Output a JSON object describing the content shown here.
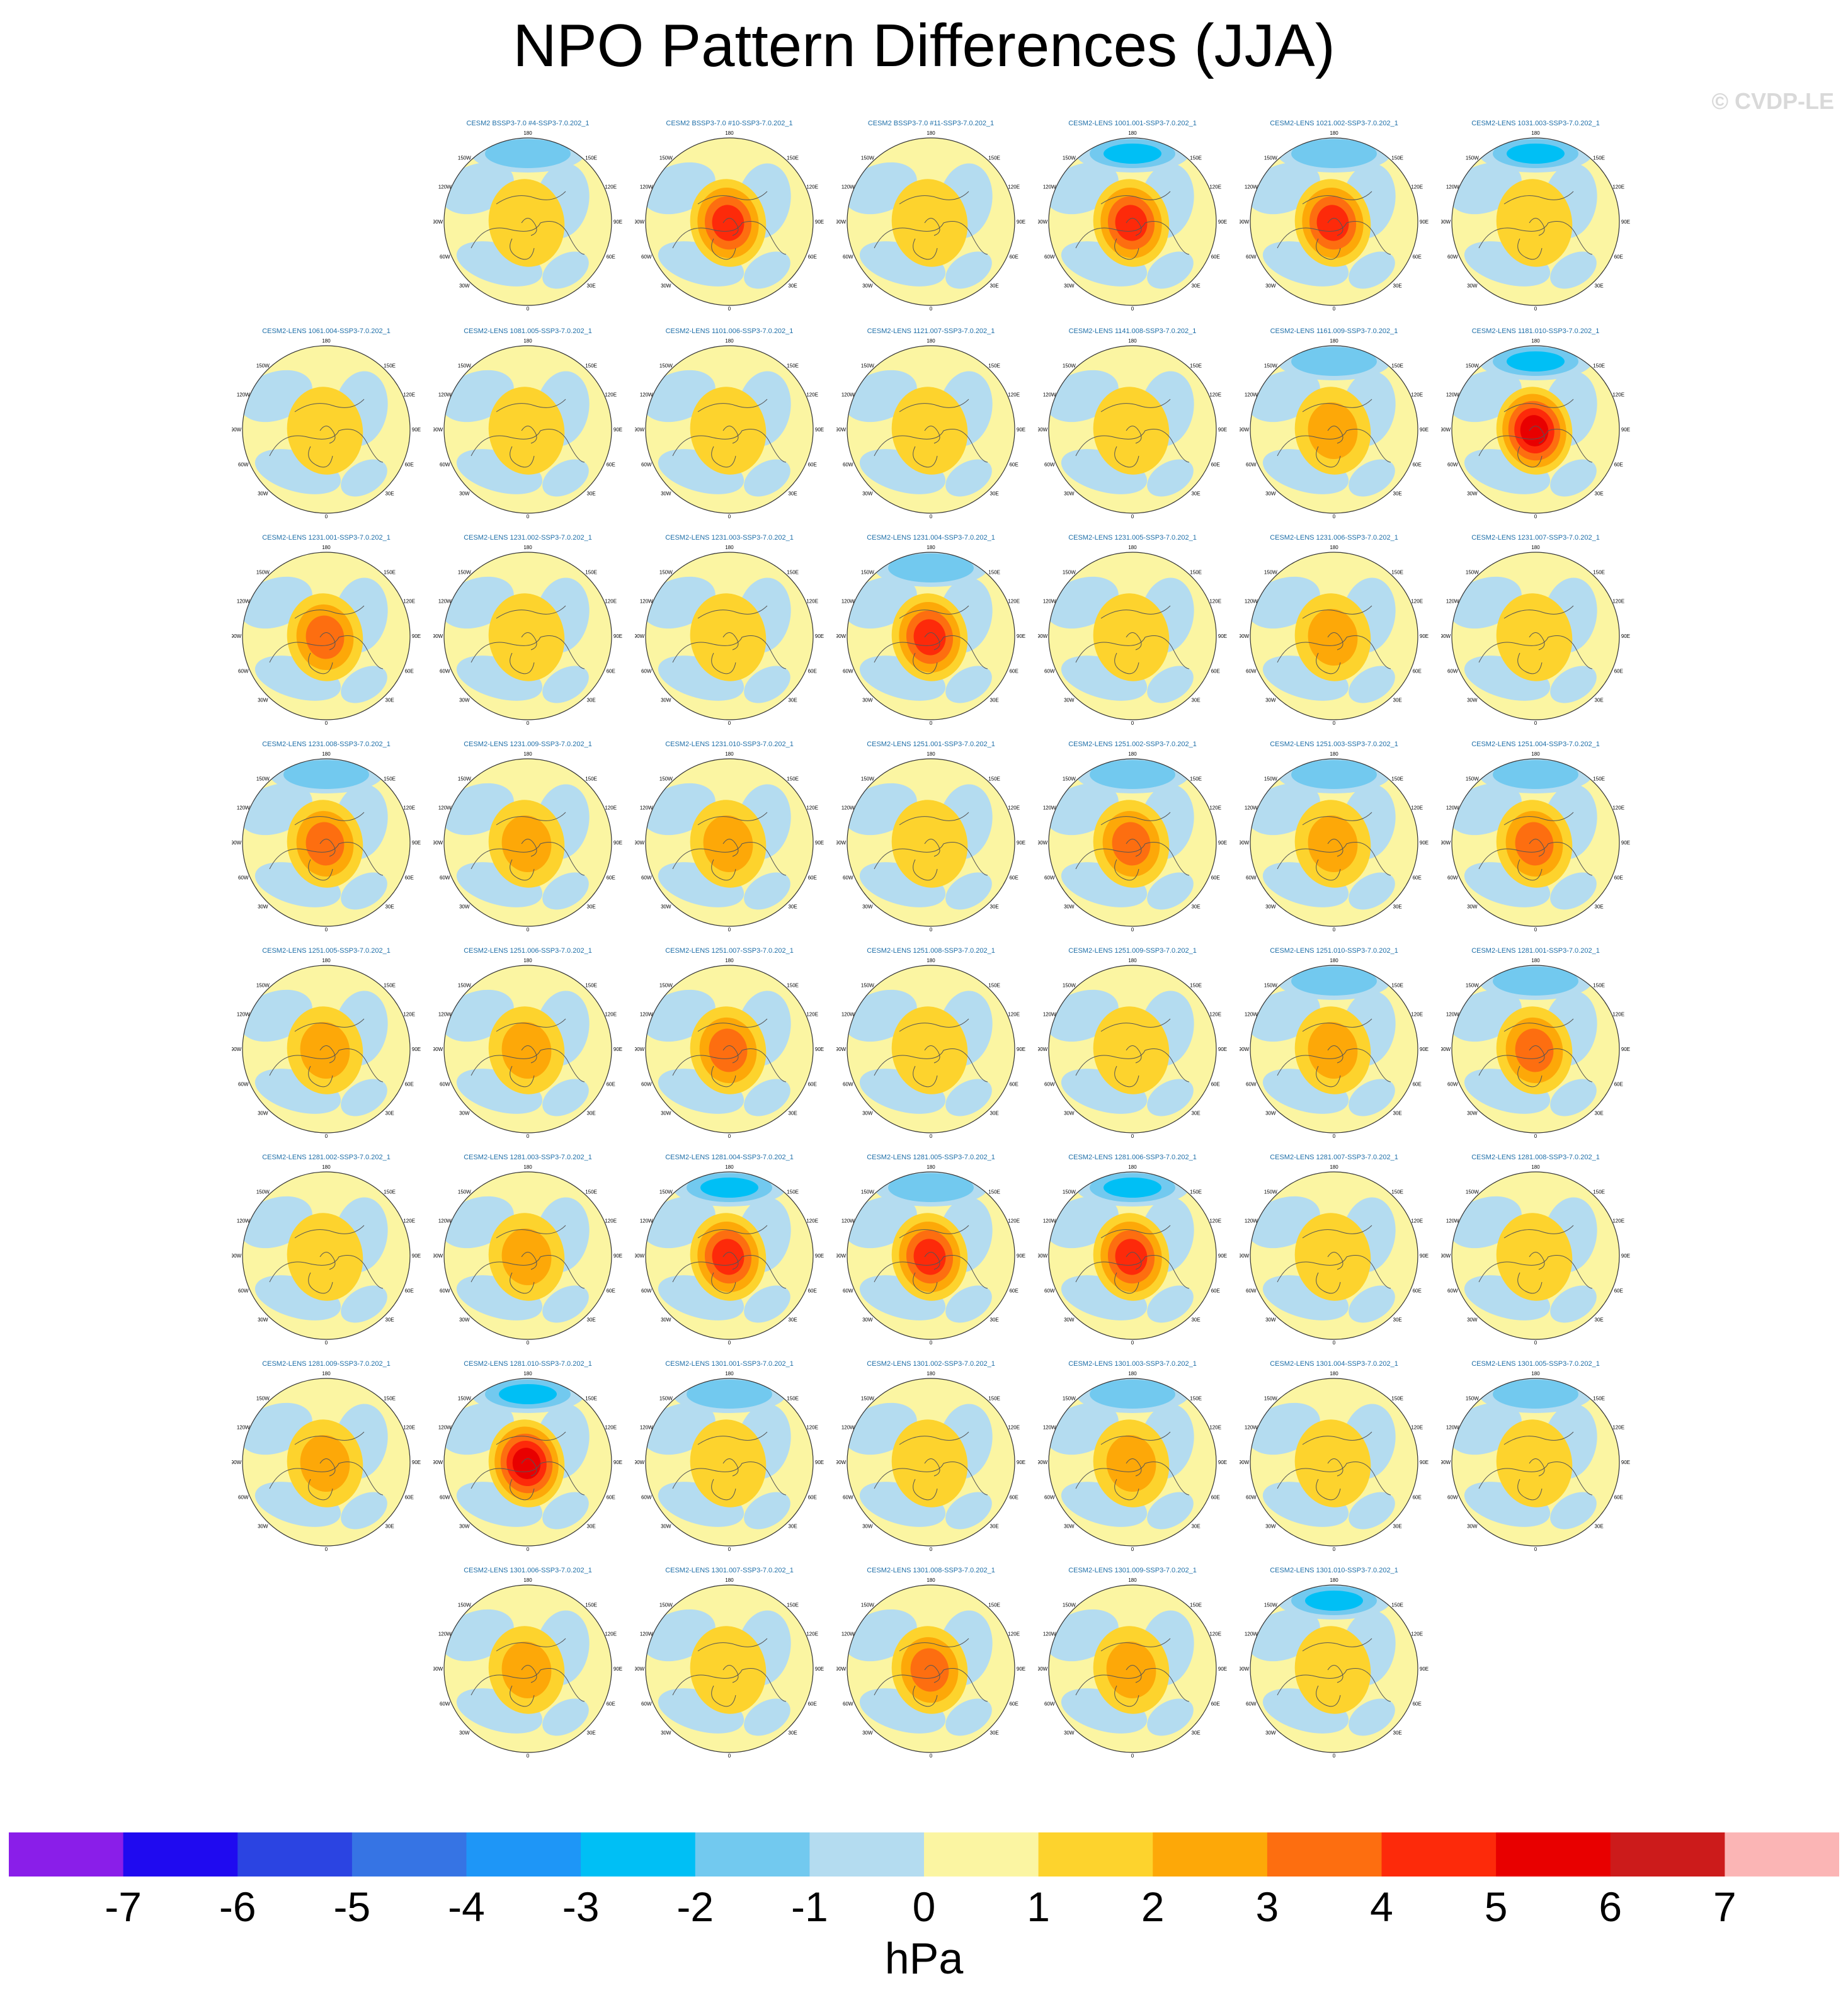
{
  "title": "NPO Pattern Differences (JJA)",
  "watermark": "© CVDP-LE",
  "colorbar": {
    "units": "hPa",
    "ticks": [
      "-7",
      "-6",
      "-5",
      "-4",
      "-3",
      "-2",
      "-1",
      "0",
      "1",
      "2",
      "3",
      "4",
      "5",
      "6",
      "7"
    ],
    "colors": [
      "#8a1ee9",
      "#1f0af0",
      "#2b44e2",
      "#3674e4",
      "#1e96f7",
      "#00bff5",
      "#72c9ef",
      "#b4dcf0",
      "#fbf5a2",
      "#fdd32d",
      "#fda808",
      "#fd6e10",
      "#fd2a0a",
      "#e80000",
      "#cc1b1b",
      "#fbb5b5"
    ]
  },
  "map_labels": {
    "top": "180",
    "bottom": "0",
    "left": [
      "150W",
      "120W",
      "90W",
      "60W",
      "30W"
    ],
    "right": [
      "150E",
      "120E",
      "90E",
      "60E",
      "30E"
    ]
  },
  "panels": [
    {
      "title": "CESM2 BSSP3-7.0 #4-SSP3-7.0.202_1",
      "peak": 1,
      "pole": -1
    },
    {
      "title": "CESM2 BSSP3-7.0 #10-SSP3-7.0.202_1",
      "peak": 4,
      "pole": 0
    },
    {
      "title": "CESM2 BSSP3-7.0 #11-SSP3-7.0.202_1",
      "peak": 1,
      "pole": 0
    },
    {
      "title": "CESM2-LENS 1001.001-SSP3-7.0.202_1",
      "peak": 4,
      "pole": -2
    },
    {
      "title": "CESM2-LENS 1021.002-SSP3-7.0.202_1",
      "peak": 4,
      "pole": -1
    },
    {
      "title": "CESM2-LENS 1031.003-SSP3-7.0.202_1",
      "peak": 1,
      "pole": -2
    },
    {
      "title": "CESM2-LENS 1061.004-SSP3-7.0.202_1",
      "peak": 1,
      "pole": 0
    },
    {
      "title": "CESM2-LENS 1081.005-SSP3-7.0.202_1",
      "peak": 1,
      "pole": 0
    },
    {
      "title": "CESM2-LENS 1101.006-SSP3-7.0.202_1",
      "peak": 1,
      "pole": 0
    },
    {
      "title": "CESM2-LENS 1121.007-SSP3-7.0.202_1",
      "peak": 1,
      "pole": 0
    },
    {
      "title": "CESM2-LENS 1141.008-SSP3-7.0.202_1",
      "peak": 1,
      "pole": 0
    },
    {
      "title": "CESM2-LENS 1161.009-SSP3-7.0.202_1",
      "peak": 2,
      "pole": -1
    },
    {
      "title": "CESM2-LENS 1181.010-SSP3-7.0.202_1",
      "peak": 5,
      "pole": -2
    },
    {
      "title": "CESM2-LENS 1231.001-SSP3-7.0.202_1",
      "peak": 3,
      "pole": 0
    },
    {
      "title": "CESM2-LENS 1231.002-SSP3-7.0.202_1",
      "peak": 1,
      "pole": 0
    },
    {
      "title": "CESM2-LENS 1231.003-SSP3-7.0.202_1",
      "peak": 1,
      "pole": 0
    },
    {
      "title": "CESM2-LENS 1231.004-SSP3-7.0.202_1",
      "peak": 4,
      "pole": -1
    },
    {
      "title": "CESM2-LENS 1231.005-SSP3-7.0.202_1",
      "peak": 1,
      "pole": 0
    },
    {
      "title": "CESM2-LENS 1231.006-SSP3-7.0.202_1",
      "peak": 2,
      "pole": 0
    },
    {
      "title": "CESM2-LENS 1231.007-SSP3-7.0.202_1",
      "peak": 1,
      "pole": 0
    },
    {
      "title": "CESM2-LENS 1231.008-SSP3-7.0.202_1",
      "peak": 3,
      "pole": -1
    },
    {
      "title": "CESM2-LENS 1231.009-SSP3-7.0.202_1",
      "peak": 2,
      "pole": 0
    },
    {
      "title": "CESM2-LENS 1231.010-SSP3-7.0.202_1",
      "peak": 2,
      "pole": 0
    },
    {
      "title": "CESM2-LENS 1251.001-SSP3-7.0.202_1",
      "peak": 1,
      "pole": 0
    },
    {
      "title": "CESM2-LENS 1251.002-SSP3-7.0.202_1",
      "peak": 3,
      "pole": -1
    },
    {
      "title": "CESM2-LENS 1251.003-SSP3-7.0.202_1",
      "peak": 2,
      "pole": -1
    },
    {
      "title": "CESM2-LENS 1251.004-SSP3-7.0.202_1",
      "peak": 3,
      "pole": -1
    },
    {
      "title": "CESM2-LENS 1251.005-SSP3-7.0.202_1",
      "peak": 2,
      "pole": 0
    },
    {
      "title": "CESM2-LENS 1251.006-SSP3-7.0.202_1",
      "peak": 2,
      "pole": 0
    },
    {
      "title": "CESM2-LENS 1251.007-SSP3-7.0.202_1",
      "peak": 3,
      "pole": 0
    },
    {
      "title": "CESM2-LENS 1251.008-SSP3-7.0.202_1",
      "peak": 1,
      "pole": 0
    },
    {
      "title": "CESM2-LENS 1251.009-SSP3-7.0.202_1",
      "peak": 1,
      "pole": 0
    },
    {
      "title": "CESM2-LENS 1251.010-SSP3-7.0.202_1",
      "peak": 2,
      "pole": -1
    },
    {
      "title": "CESM2-LENS 1281.001-SSP3-7.0.202_1",
      "peak": 3,
      "pole": -1
    },
    {
      "title": "CESM2-LENS 1281.002-SSP3-7.0.202_1",
      "peak": 1,
      "pole": 0
    },
    {
      "title": "CESM2-LENS 1281.003-SSP3-7.0.202_1",
      "peak": 2,
      "pole": 0
    },
    {
      "title": "CESM2-LENS 1281.004-SSP3-7.0.202_1",
      "peak": 4,
      "pole": -2
    },
    {
      "title": "CESM2-LENS 1281.005-SSP3-7.0.202_1",
      "peak": 4,
      "pole": -1
    },
    {
      "title": "CESM2-LENS 1281.006-SSP3-7.0.202_1",
      "peak": 4,
      "pole": -2
    },
    {
      "title": "CESM2-LENS 1281.007-SSP3-7.0.202_1",
      "peak": 1,
      "pole": 0
    },
    {
      "title": "CESM2-LENS 1281.008-SSP3-7.0.202_1",
      "peak": 1,
      "pole": 0
    },
    {
      "title": "CESM2-LENS 1281.009-SSP3-7.0.202_1",
      "peak": 2,
      "pole": 0
    },
    {
      "title": "CESM2-LENS 1281.010-SSP3-7.0.202_1",
      "peak": 5,
      "pole": -2
    },
    {
      "title": "CESM2-LENS 1301.001-SSP3-7.0.202_1",
      "peak": 1,
      "pole": -1
    },
    {
      "title": "CESM2-LENS 1301.002-SSP3-7.0.202_1",
      "peak": 1,
      "pole": 0
    },
    {
      "title": "CESM2-LENS 1301.003-SSP3-7.0.202_1",
      "peak": 2,
      "pole": -1
    },
    {
      "title": "CESM2-LENS 1301.004-SSP3-7.0.202_1",
      "peak": 1,
      "pole": 0
    },
    {
      "title": "CESM2-LENS 1301.005-SSP3-7.0.202_1",
      "peak": 1,
      "pole": -1
    },
    {
      "title": "CESM2-LENS 1301.006-SSP3-7.0.202_1",
      "peak": 2,
      "pole": 0
    },
    {
      "title": "CESM2-LENS 1301.007-SSP3-7.0.202_1",
      "peak": 1,
      "pole": 0
    },
    {
      "title": "CESM2-LENS 1301.008-SSP3-7.0.202_1",
      "peak": 3,
      "pole": 0
    },
    {
      "title": "CESM2-LENS 1301.009-SSP3-7.0.202_1",
      "peak": 2,
      "pole": 0
    },
    {
      "title": "CESM2-LENS 1301.010-SSP3-7.0.202_1",
      "peak": 1,
      "pole": -2
    }
  ]
}
